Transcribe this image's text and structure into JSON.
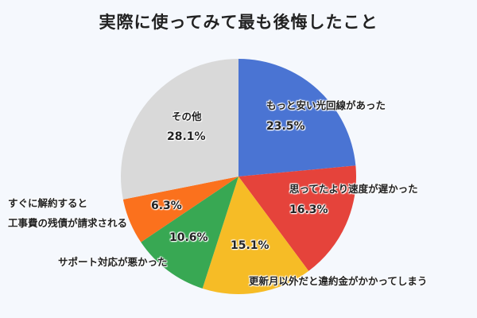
{
  "title": "実際に使ってみて最も後悔したこと",
  "chart_data": {
    "type": "pie",
    "title": "実際に使ってみて最も後悔したこと",
    "categories": [
      "もっと安い光回線があった",
      "思ってたより速度が遅かった",
      "更新月以外だと違約金がかかってしまう",
      "サポート対応が悪かった",
      "すぐに解約すると工事費の残債が請求される",
      "その他"
    ],
    "values": [
      23.5,
      16.3,
      15.1,
      10.6,
      6.3,
      28.1
    ],
    "colors": [
      "#4a74d3",
      "#e5433b",
      "#f6bc26",
      "#38a853",
      "#fb711d",
      "#d9d9d9"
    ],
    "unit": "%",
    "start_angle": "12 o'clock",
    "direction": "clockwise",
    "legend": "none (direct labels)"
  },
  "labels": {
    "s0": {
      "name": "もっと安い光回線があった",
      "pct": "23.5%"
    },
    "s1": {
      "name": "思ってたより速度が遅かった",
      "pct": "16.3%"
    },
    "s2": {
      "name": "更新月以外だと違約金がかかってしまう",
      "pct": "15.1%"
    },
    "s3": {
      "name": "サポート対応が悪かった",
      "pct": "10.6%"
    },
    "s4": {
      "name_line1": "すぐに解約すると",
      "name_line2": "工事費の残債が請求される",
      "pct": "6.3%"
    },
    "s5": {
      "name": "その他",
      "pct": "28.1%"
    }
  }
}
